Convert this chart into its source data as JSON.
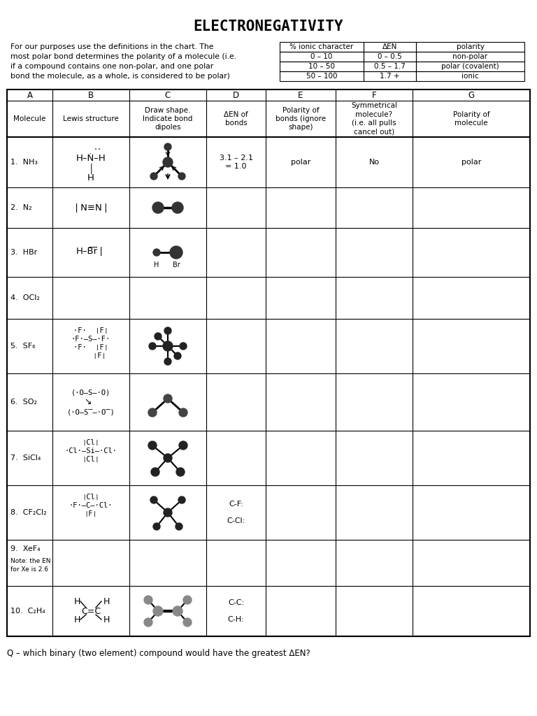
{
  "title": "ELECTRONEGATIVITY",
  "intro_text": "For our purposes use the definitions in the chart. The\nmost polar bond determines the polarity of a molecule (i.e.\nif a compound contains one non-polar, and one polar\nbond the molecule, as a whole, is considered to be polar)",
  "ref_table": {
    "headers": [
      "% ionic character",
      "ΔEN",
      "polarity"
    ],
    "rows": [
      [
        "0 – 10",
        "0 – 0.5",
        "non-polar"
      ],
      [
        "10 – 50",
        "0.5 – 1.7",
        "polar (covalent)"
      ],
      [
        "50 – 100",
        "1.7 +",
        "ionic"
      ]
    ]
  },
  "col_headers": [
    "A",
    "B",
    "C",
    "D",
    "E",
    "F",
    "G"
  ],
  "col_subheaders": [
    "Molecule",
    "Lewis structure",
    "Draw shape.\nIndicate bond\ndipoles",
    "ΔEN of\nbonds",
    "Polarity of\nbonds (ignore\nshape)",
    "Symmetrical\nmolecule?\n(i.e. all pulls\ncancel out)",
    "Polarity of\nmolecule"
  ],
  "rows": [
    {
      "num": "1.",
      "molecule": "NH₃",
      "delta_en": "3.1 – 2.1\n= 1.0",
      "polarity_bonds": "polar",
      "symmetrical": "No",
      "polarity_mol": "polar"
    },
    {
      "num": "2.",
      "molecule": "N₂",
      "delta_en": "",
      "polarity_bonds": "",
      "symmetrical": "",
      "polarity_mol": ""
    },
    {
      "num": "3.",
      "molecule": "HBr",
      "delta_en": "",
      "polarity_bonds": "",
      "symmetrical": "",
      "polarity_mol": ""
    },
    {
      "num": "4.",
      "molecule": "OCl₂",
      "delta_en": "",
      "polarity_bonds": "",
      "symmetrical": "",
      "polarity_mol": ""
    },
    {
      "num": "5.",
      "molecule": "SF₆",
      "delta_en": "",
      "polarity_bonds": "",
      "symmetrical": "",
      "polarity_mol": ""
    },
    {
      "num": "6.",
      "molecule": "SO₂",
      "delta_en": "",
      "polarity_bonds": "",
      "symmetrical": "",
      "polarity_mol": ""
    },
    {
      "num": "7.",
      "molecule": "SiCl₄",
      "delta_en": "",
      "polarity_bonds": "",
      "symmetrical": "",
      "polarity_mol": ""
    },
    {
      "num": "8.",
      "molecule": "CF₂Cl₂",
      "delta_en": "C-F:\n\nC-Cl:",
      "polarity_bonds": "",
      "symmetrical": "",
      "polarity_mol": ""
    },
    {
      "num": "9.",
      "molecule": "XeF₄\n\nNote: the EN\nfor Xe is 2.6",
      "delta_en": "",
      "polarity_bonds": "",
      "symmetrical": "",
      "polarity_mol": ""
    },
    {
      "num": "10.",
      "molecule": "C₂H₄",
      "delta_en": "C-C:\n\nC-H:",
      "polarity_bonds": "",
      "symmetrical": "",
      "polarity_mol": ""
    }
  ],
  "footer": "Q – which binary (two element) compound would have the greatest ΔEN?",
  "bg_color": "#ffffff",
  "line_color": "#000000",
  "font_color": "#000000"
}
